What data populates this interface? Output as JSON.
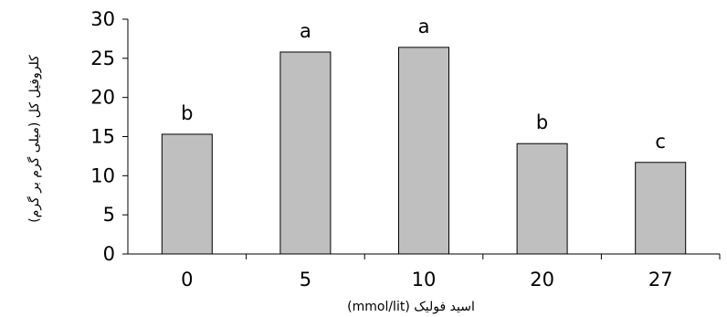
{
  "chart_data": {
    "type": "bar",
    "categories": [
      "0",
      "5",
      "10",
      "20",
      "27"
    ],
    "values": [
      15.3,
      25.8,
      26.4,
      14.1,
      11.7
    ],
    "labels": [
      "b",
      "a",
      "a",
      "b",
      "c"
    ],
    "xlabel": "اسید فولیک (mmol/lit)",
    "ylabel": "کلروفیل کل (میلی گرم بر گرم)",
    "ylim": [
      0,
      30
    ],
    "yticks": [
      "0",
      "5",
      "10",
      "15",
      "20",
      "25",
      "30"
    ],
    "ytick_values": [
      0,
      5,
      10,
      15,
      20,
      25,
      30
    ],
    "grid": false,
    "bar_color": "#bfbfbf",
    "bar_edge_color": "#000000"
  }
}
